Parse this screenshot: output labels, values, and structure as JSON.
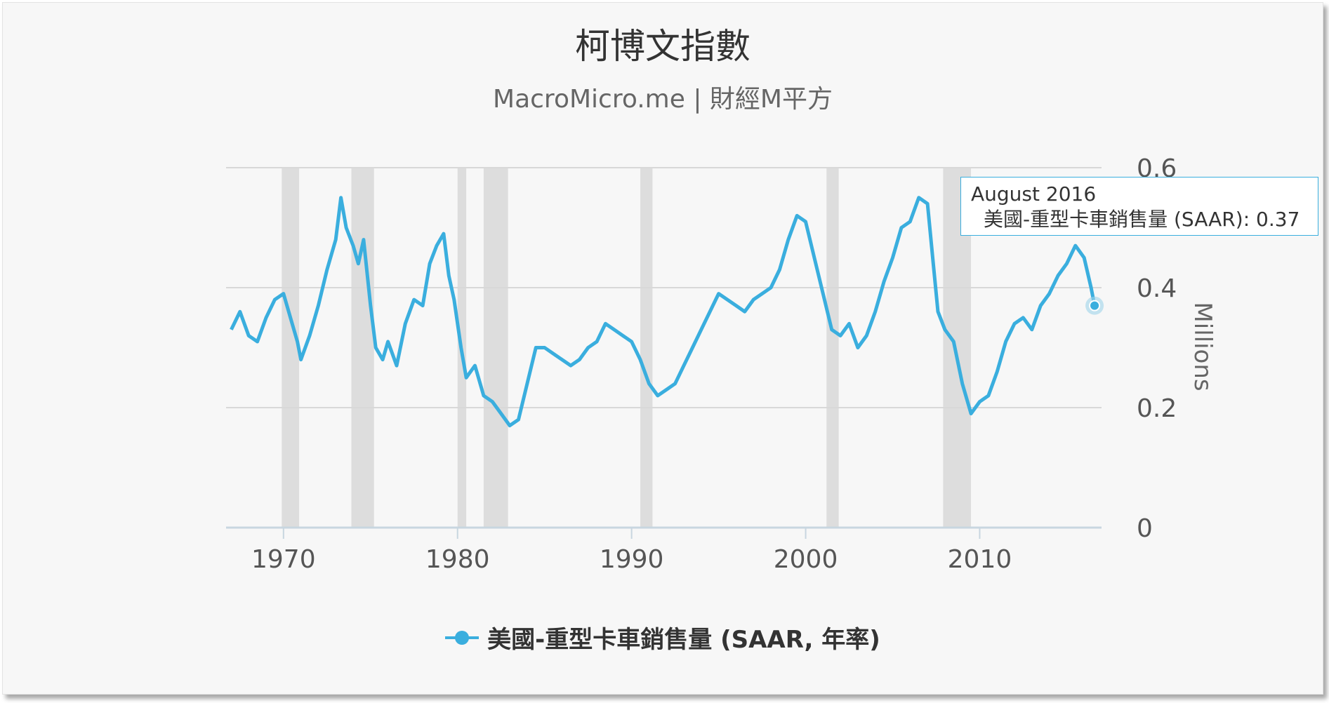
{
  "title": "柯博文指數",
  "subtitle": "MacroMicro.me | 財經M平方",
  "tooltip": {
    "date": "August 2016",
    "series": "美國-重型卡車銷售量 (SAAR)",
    "value": "0.37"
  },
  "legend": {
    "label": "美國-重型卡車銷售量 (SAAR, 年率)",
    "color": "#3aaede"
  },
  "chart_data": {
    "type": "line",
    "ylabel": "Millions",
    "ylim": [
      0,
      0.6
    ],
    "xlim": [
      1966.7,
      2017.0
    ],
    "y_ticks": [
      "0",
      "0.2",
      "0.4",
      "0.6"
    ],
    "x_ticks": [
      "1970",
      "1980",
      "1990",
      "2000",
      "2010"
    ],
    "grid": true,
    "legend_position": "bottom",
    "recessions": [
      [
        1969.9,
        1970.9
      ],
      [
        1973.9,
        1975.2
      ],
      [
        1980.0,
        1980.5
      ],
      [
        1981.5,
        1982.9
      ],
      [
        1990.5,
        1991.2
      ],
      [
        2001.2,
        2001.9
      ],
      [
        2007.9,
        2009.5
      ]
    ],
    "series": [
      {
        "name": "美國-重型卡車銷售量 (SAAR, 年率)",
        "color": "#3aaede",
        "points": [
          [
            1967.0,
            0.33
          ],
          [
            1967.5,
            0.36
          ],
          [
            1968.0,
            0.32
          ],
          [
            1968.5,
            0.31
          ],
          [
            1969.0,
            0.35
          ],
          [
            1969.5,
            0.38
          ],
          [
            1970.0,
            0.39
          ],
          [
            1970.4,
            0.35
          ],
          [
            1970.8,
            0.31
          ],
          [
            1971.0,
            0.28
          ],
          [
            1971.5,
            0.32
          ],
          [
            1972.0,
            0.37
          ],
          [
            1972.5,
            0.43
          ],
          [
            1973.0,
            0.48
          ],
          [
            1973.3,
            0.55
          ],
          [
            1973.6,
            0.5
          ],
          [
            1974.0,
            0.47
          ],
          [
            1974.3,
            0.44
          ],
          [
            1974.6,
            0.48
          ],
          [
            1975.0,
            0.37
          ],
          [
            1975.3,
            0.3
          ],
          [
            1975.7,
            0.28
          ],
          [
            1976.0,
            0.31
          ],
          [
            1976.5,
            0.27
          ],
          [
            1977.0,
            0.34
          ],
          [
            1977.5,
            0.38
          ],
          [
            1978.0,
            0.37
          ],
          [
            1978.4,
            0.44
          ],
          [
            1978.8,
            0.47
          ],
          [
            1979.2,
            0.49
          ],
          [
            1979.5,
            0.42
          ],
          [
            1979.8,
            0.38
          ],
          [
            1980.2,
            0.3
          ],
          [
            1980.5,
            0.25
          ],
          [
            1981.0,
            0.27
          ],
          [
            1981.5,
            0.22
          ],
          [
            1982.0,
            0.21
          ],
          [
            1982.5,
            0.19
          ],
          [
            1983.0,
            0.17
          ],
          [
            1983.5,
            0.18
          ],
          [
            1984.0,
            0.24
          ],
          [
            1984.5,
            0.3
          ],
          [
            1985.0,
            0.3
          ],
          [
            1985.5,
            0.29
          ],
          [
            1986.0,
            0.28
          ],
          [
            1986.5,
            0.27
          ],
          [
            1987.0,
            0.28
          ],
          [
            1987.5,
            0.3
          ],
          [
            1988.0,
            0.31
          ],
          [
            1988.5,
            0.34
          ],
          [
            1989.0,
            0.33
          ],
          [
            1989.5,
            0.32
          ],
          [
            1990.0,
            0.31
          ],
          [
            1990.5,
            0.28
          ],
          [
            1991.0,
            0.24
          ],
          [
            1991.5,
            0.22
          ],
          [
            1992.0,
            0.23
          ],
          [
            1992.5,
            0.24
          ],
          [
            1993.0,
            0.27
          ],
          [
            1993.5,
            0.3
          ],
          [
            1994.0,
            0.33
          ],
          [
            1994.5,
            0.36
          ],
          [
            1995.0,
            0.39
          ],
          [
            1995.5,
            0.38
          ],
          [
            1996.0,
            0.37
          ],
          [
            1996.5,
            0.36
          ],
          [
            1997.0,
            0.38
          ],
          [
            1997.5,
            0.39
          ],
          [
            1998.0,
            0.4
          ],
          [
            1998.5,
            0.43
          ],
          [
            1999.0,
            0.48
          ],
          [
            1999.5,
            0.52
          ],
          [
            2000.0,
            0.51
          ],
          [
            2000.5,
            0.45
          ],
          [
            2001.0,
            0.39
          ],
          [
            2001.5,
            0.33
          ],
          [
            2002.0,
            0.32
          ],
          [
            2002.5,
            0.34
          ],
          [
            2003.0,
            0.3
          ],
          [
            2003.5,
            0.32
          ],
          [
            2004.0,
            0.36
          ],
          [
            2004.5,
            0.41
          ],
          [
            2005.0,
            0.45
          ],
          [
            2005.5,
            0.5
          ],
          [
            2006.0,
            0.51
          ],
          [
            2006.5,
            0.55
          ],
          [
            2007.0,
            0.54
          ],
          [
            2007.3,
            0.45
          ],
          [
            2007.6,
            0.36
          ],
          [
            2008.0,
            0.33
          ],
          [
            2008.5,
            0.31
          ],
          [
            2009.0,
            0.24
          ],
          [
            2009.5,
            0.19
          ],
          [
            2010.0,
            0.21
          ],
          [
            2010.5,
            0.22
          ],
          [
            2011.0,
            0.26
          ],
          [
            2011.5,
            0.31
          ],
          [
            2012.0,
            0.34
          ],
          [
            2012.5,
            0.35
          ],
          [
            2013.0,
            0.33
          ],
          [
            2013.5,
            0.37
          ],
          [
            2014.0,
            0.39
          ],
          [
            2014.5,
            0.42
          ],
          [
            2015.0,
            0.44
          ],
          [
            2015.5,
            0.47
          ],
          [
            2016.0,
            0.45
          ],
          [
            2016.4,
            0.4
          ],
          [
            2016.6,
            0.37
          ]
        ]
      }
    ],
    "highlight": {
      "x": 2016.6,
      "y": 0.37
    }
  }
}
